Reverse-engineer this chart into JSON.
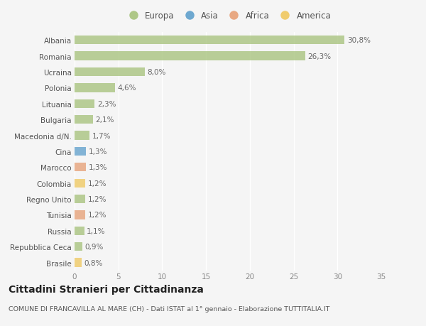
{
  "countries": [
    "Albania",
    "Romania",
    "Ucraina",
    "Polonia",
    "Lituania",
    "Bulgaria",
    "Macedonia d/N.",
    "Cina",
    "Marocco",
    "Colombia",
    "Regno Unito",
    "Tunisia",
    "Russia",
    "Repubblica Ceca",
    "Brasile"
  ],
  "values": [
    30.8,
    26.3,
    8.0,
    4.6,
    2.3,
    2.1,
    1.7,
    1.3,
    1.3,
    1.2,
    1.2,
    1.2,
    1.1,
    0.9,
    0.8
  ],
  "labels": [
    "30,8%",
    "26,3%",
    "8,0%",
    "4,6%",
    "2,3%",
    "2,1%",
    "1,7%",
    "1,3%",
    "1,3%",
    "1,2%",
    "1,2%",
    "1,2%",
    "1,1%",
    "0,9%",
    "0,8%"
  ],
  "continents": [
    "Europa",
    "Europa",
    "Europa",
    "Europa",
    "Europa",
    "Europa",
    "Europa",
    "Asia",
    "Africa",
    "America",
    "Europa",
    "Africa",
    "Europa",
    "Europa",
    "America"
  ],
  "colors": {
    "Europa": "#aec787",
    "Asia": "#6ea8d0",
    "Africa": "#e8a882",
    "America": "#f0cc6e"
  },
  "legend_items": [
    "Europa",
    "Asia",
    "Africa",
    "America"
  ],
  "legend_colors": [
    "#aec787",
    "#6ea8d0",
    "#e8a882",
    "#f0cc6e"
  ],
  "xlim": [
    0,
    35
  ],
  "xticks": [
    0,
    5,
    10,
    15,
    20,
    25,
    30,
    35
  ],
  "title": "Cittadini Stranieri per Cittadinanza",
  "subtitle": "COMUNE DI FRANCAVILLA AL MARE (CH) - Dati ISTAT al 1° gennaio - Elaborazione TUTTITALIA.IT",
  "bg_color": "#f5f5f5",
  "bar_height": 0.55,
  "label_fontsize": 7.5,
  "tick_fontsize": 7.5,
  "title_fontsize": 10,
  "subtitle_fontsize": 6.8
}
